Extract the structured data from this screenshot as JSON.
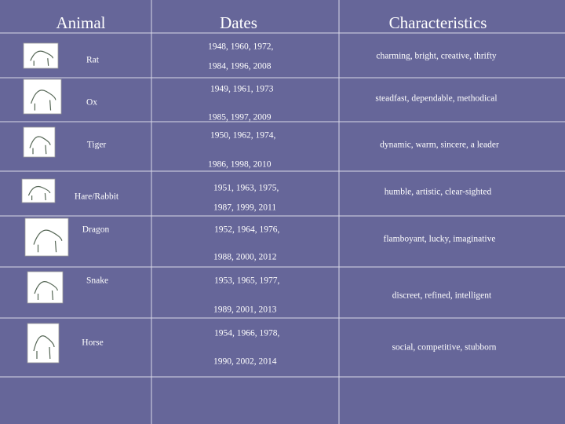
{
  "header": {
    "columns": [
      "Animal",
      "Dates",
      "Characteristics"
    ]
  },
  "table": {
    "rows": [
      {
        "animal": "Rat",
        "dates": [
          "1948, 1960, 1972,",
          "1984, 1996, 2008"
        ],
        "characteristics": "charming, bright, creative, thrifty"
      },
      {
        "animal": "Ox",
        "dates": [
          "1949, 1961, 1973",
          "1985, 1997, 2009"
        ],
        "characteristics": "steadfast, dependable, methodical"
      },
      {
        "animal": "Tiger",
        "dates": [
          "1950, 1962, 1974,",
          "1986, 1998, 2010"
        ],
        "characteristics": "dynamic, warm, sincere, a leader"
      },
      {
        "animal": "Hare/Rabbit",
        "dates": [
          "1951, 1963, 1975,",
          "1987, 1999, 2011"
        ],
        "characteristics": "humble, artistic, clear-sighted"
      },
      {
        "animal": "Dragon",
        "dates": [
          "1952, 1964, 1976,",
          "1988, 2000, 2012"
        ],
        "characteristics": "flamboyant, lucky, imaginative"
      },
      {
        "animal": "Snake",
        "dates": [
          "1953, 1965, 1977,",
          "1989, 2001, 2013"
        ],
        "characteristics": "discreet, refined, intelligent"
      },
      {
        "animal": "Horse",
        "dates": [
          "1954, 1966, 1978,",
          "1990, 2002, 2014"
        ],
        "characteristics": "social, competitive, stubborn"
      }
    ]
  }
}
